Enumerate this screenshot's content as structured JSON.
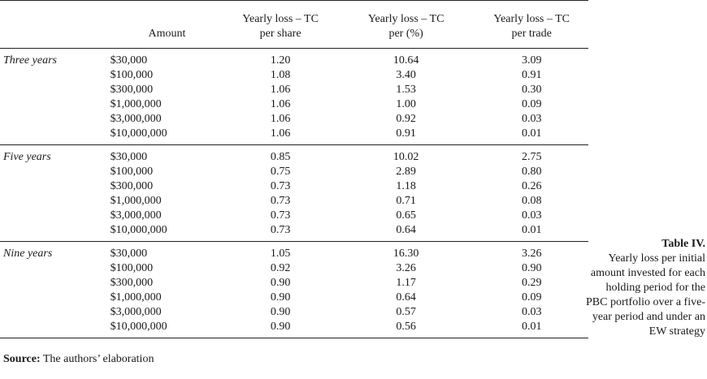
{
  "table": {
    "headers": {
      "group": "",
      "amount": "Amount",
      "per_share": [
        "Yearly loss – TC",
        "per share"
      ],
      "per_pct": [
        "Yearly loss – TC",
        "per (%)"
      ],
      "per_trade": [
        "Yearly loss – TC",
        "per trade"
      ]
    },
    "groups": [
      {
        "label": "Three years",
        "rows": [
          {
            "amount": "$30,000",
            "per_share": "1.20",
            "per_pct": "10.64",
            "per_trade": "3.09"
          },
          {
            "amount": "$100,000",
            "per_share": "1.08",
            "per_pct": "3.40",
            "per_trade": "0.91"
          },
          {
            "amount": "$300,000",
            "per_share": "1.06",
            "per_pct": "1.53",
            "per_trade": "0.30"
          },
          {
            "amount": "$1,000,000",
            "per_share": "1.06",
            "per_pct": "1.00",
            "per_trade": "0.09"
          },
          {
            "amount": "$3,000,000",
            "per_share": "1.06",
            "per_pct": "0.92",
            "per_trade": "0.03"
          },
          {
            "amount": "$10,000,000",
            "per_share": "1.06",
            "per_pct": "0.91",
            "per_trade": "0.01"
          }
        ]
      },
      {
        "label": "Five years",
        "rows": [
          {
            "amount": "$30,000",
            "per_share": "0.85",
            "per_pct": "10.02",
            "per_trade": "2.75"
          },
          {
            "amount": "$100,000",
            "per_share": "0.75",
            "per_pct": "2.89",
            "per_trade": "0.80"
          },
          {
            "amount": "$300,000",
            "per_share": "0.73",
            "per_pct": "1.18",
            "per_trade": "0.26"
          },
          {
            "amount": "$1,000,000",
            "per_share": "0.73",
            "per_pct": "0.71",
            "per_trade": "0.08"
          },
          {
            "amount": "$3,000,000",
            "per_share": "0.73",
            "per_pct": "0.65",
            "per_trade": "0.03"
          },
          {
            "amount": "$10,000,000",
            "per_share": "0.73",
            "per_pct": "0.64",
            "per_trade": "0.01"
          }
        ]
      },
      {
        "label": "Nine years",
        "rows": [
          {
            "amount": "$30,000",
            "per_share": "1.05",
            "per_pct": "16.30",
            "per_trade": "3.26"
          },
          {
            "amount": "$100,000",
            "per_share": "0.92",
            "per_pct": "3.26",
            "per_trade": "0.90"
          },
          {
            "amount": "$300,000",
            "per_share": "0.90",
            "per_pct": "1.17",
            "per_trade": "0.29"
          },
          {
            "amount": "$1,000,000",
            "per_share": "0.90",
            "per_pct": "0.64",
            "per_trade": "0.09"
          },
          {
            "amount": "$3,000,000",
            "per_share": "0.90",
            "per_pct": "0.57",
            "per_trade": "0.03"
          },
          {
            "amount": "$10,000,000",
            "per_share": "0.90",
            "per_pct": "0.56",
            "per_trade": "0.01"
          }
        ]
      }
    ]
  },
  "source": {
    "label": "Source:",
    "text": " The authors’ elaboration"
  },
  "caption": {
    "title": "Table IV.",
    "text": "Yearly loss per initial amount invested for each holding period for the PBC portfolio over a five-year period and under an EW strategy"
  }
}
